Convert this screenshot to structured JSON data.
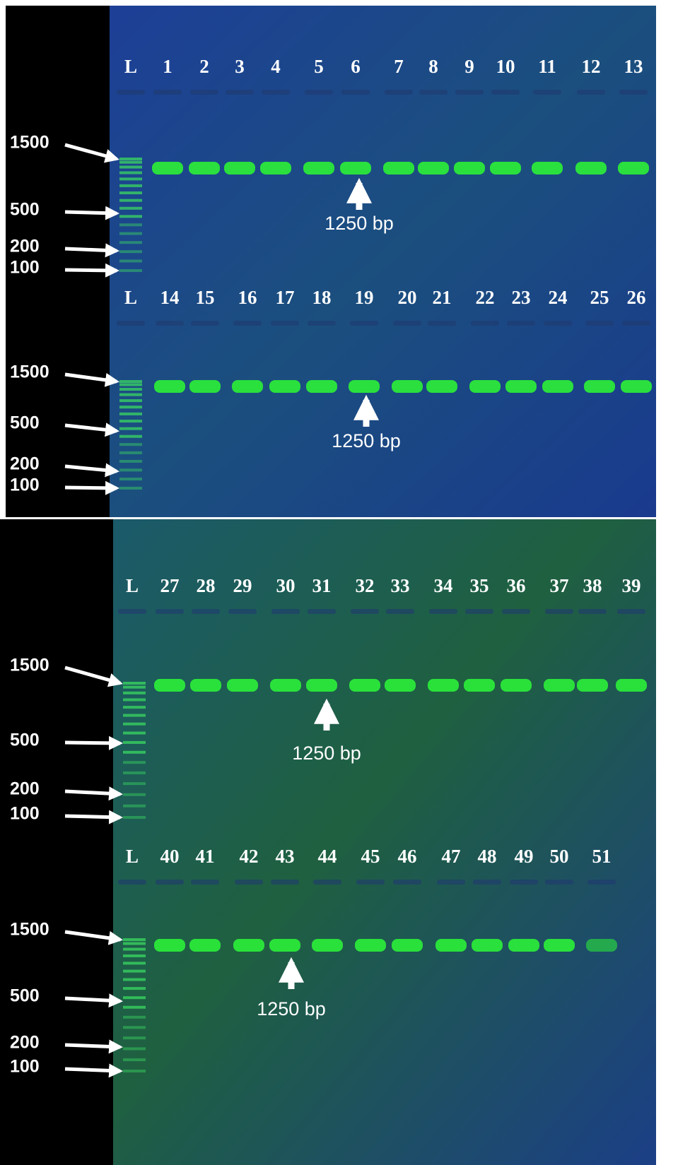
{
  "rows": [
    {
      "lanes": [
        "L",
        "1",
        "2",
        "3",
        "4",
        "5",
        "6",
        "7",
        "8",
        "9",
        "10",
        "11",
        "12",
        "13"
      ],
      "ladder": [
        "1500",
        "500",
        "200",
        "100"
      ],
      "annotation": "1250 bp"
    },
    {
      "lanes": [
        "L",
        "14",
        "15",
        "16",
        "17",
        "18",
        "19",
        "20",
        "21",
        "22",
        "23",
        "24",
        "25",
        "26"
      ],
      "ladder": [
        "1500",
        "500",
        "200",
        "100"
      ],
      "annotation": "1250 bp"
    },
    {
      "lanes": [
        "L",
        "27",
        "28",
        "29",
        "30",
        "31",
        "32",
        "33",
        "34",
        "35",
        "36",
        "37",
        "38",
        "39"
      ],
      "ladder": [
        "1500",
        "500",
        "200",
        "100"
      ],
      "annotation": "1250 bp"
    },
    {
      "lanes": [
        "L",
        "40",
        "41",
        "42",
        "43",
        "44",
        "45",
        "46",
        "47",
        "48",
        "49",
        "50",
        "51"
      ],
      "ladder": [
        "1500",
        "500",
        "200",
        "100"
      ],
      "annotation": "1250 bp"
    }
  ]
}
